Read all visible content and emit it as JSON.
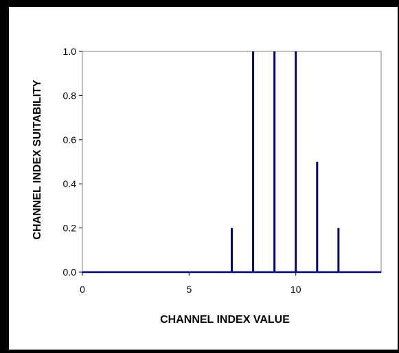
{
  "chart_data": {
    "type": "bar",
    "title": "",
    "xlabel": "CHANNEL INDEX VALUE",
    "ylabel": "CHANNEL INDEX SUITABILITY",
    "xlim": [
      0,
      14
    ],
    "ylim": [
      0,
      1.0
    ],
    "x_ticks": [
      0,
      5,
      10
    ],
    "y_ticks": [
      "0.0",
      "0.2",
      "0.4",
      "0.6",
      "0.8",
      "1.0"
    ],
    "x": [
      7,
      8,
      9,
      10,
      11,
      12
    ],
    "values": [
      0.2,
      1.0,
      1.0,
      1.0,
      0.5,
      0.2
    ],
    "bar_color": "#000080",
    "background": "#000000",
    "plot_background": "#ffffff",
    "grid": false,
    "legend": "none"
  }
}
